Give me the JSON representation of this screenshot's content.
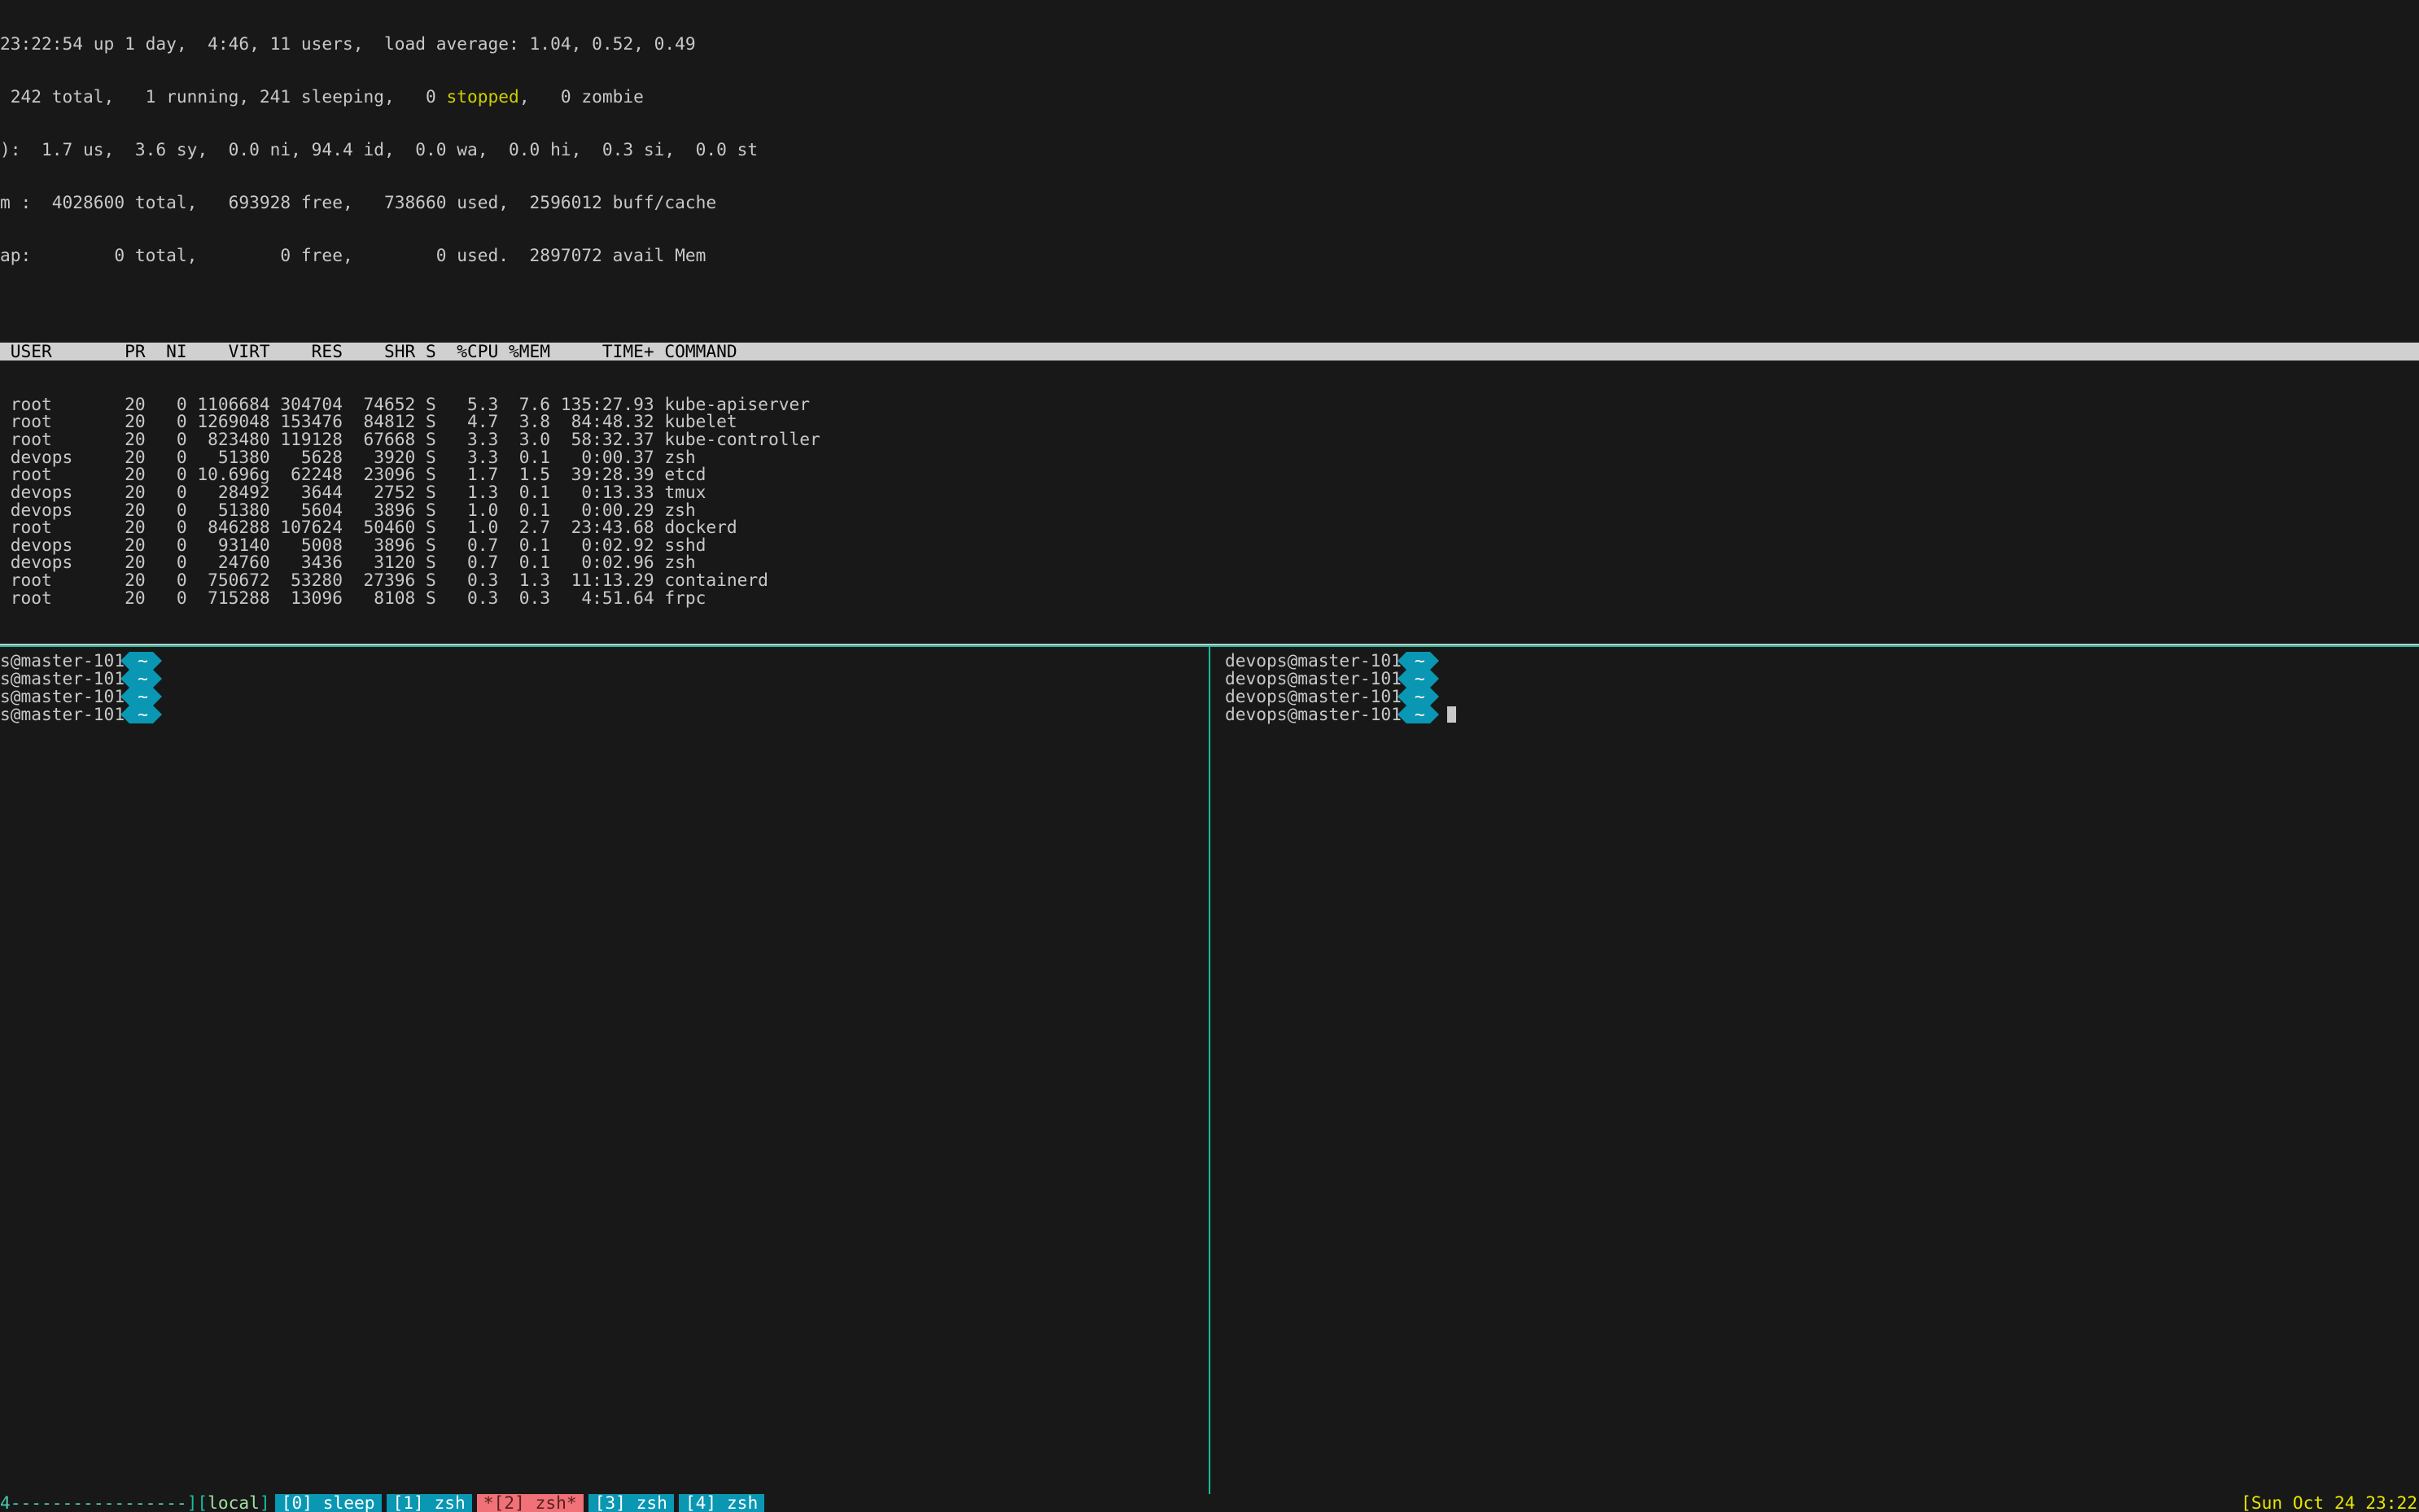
{
  "colors": {
    "bg": "#181818",
    "fg": "#c8c8c8",
    "header_bg": "#d0d0d0",
    "header_fg": "#000000",
    "accent_green": "#1abc9c",
    "accent_cyan": "#0997b3",
    "accent_red": "#f07178",
    "yellow": "#cdcd00",
    "clock": "#e6e600"
  },
  "top": {
    "line1": "23:22:54 up 1 day,  4:46, 11 users,  load average: 1.04, 0.52, 0.49",
    "line2a": " 242 total,   1 running, 241 sleeping,   0 ",
    "line2_stopped": "stopped",
    "line2b": ",   0 zombie",
    "line3": "):  1.7 us,  3.6 sy,  0.0 ni, 94.4 id,  0.0 wa,  0.0 hi,  0.3 si,  0.0 st",
    "line4": "m :  4028600 total,   693928 free,   738660 used,  2596012 buff/cache",
    "line5": "ap:        0 total,        0 free,        0 used.  2897072 avail Mem",
    "col_header": " USER       PR  NI    VIRT    RES    SHR S  %CPU %MEM     TIME+ COMMAND                                                                                                    ",
    "rows": [
      " root       20   0 1106684 304704  74652 S   5.3  7.6 135:27.93 kube-apiserver",
      " root       20   0 1269048 153476  84812 S   4.7  3.8  84:48.32 kubelet",
      " root       20   0  823480 119128  67668 S   3.3  3.0  58:32.37 kube-controller",
      " devops     20   0   51380   5628   3920 S   3.3  0.1   0:00.37 zsh",
      " root       20   0 10.696g  62248  23096 S   1.7  1.5  39:28.39 etcd",
      " devops     20   0   28492   3644   2752 S   1.3  0.1   0:13.33 tmux",
      " devops     20   0   51380   5604   3896 S   1.0  0.1   0:00.29 zsh",
      " root       20   0  846288 107624  50460 S   1.0  2.7  23:43.68 dockerd",
      " devops     20   0   93140   5008   3896 S   0.7  0.1   0:02.92 sshd",
      " devops     20   0   24760   3436   3120 S   0.7  0.1   0:02.96 zsh",
      " root       20   0  750672  53280  27396 S   0.3  1.3  11:13.29 containerd",
      " root       20   0  715288  13096   8108 S   0.3  0.3   4:51.64 frpc"
    ]
  },
  "panes": {
    "left": [
      "s@master-101",
      "s@master-101",
      "s@master-101",
      "s@master-101"
    ],
    "right": [
      "devops@master-101",
      "devops@master-101",
      "devops@master-101",
      "devops@master-101"
    ],
    "tilde": "~"
  },
  "status": {
    "leading": "4",
    "dashes": "-----------------",
    "local": "local",
    "windows": [
      {
        "label": "[0] sleep",
        "style": "blue"
      },
      {
        "label": "[1] zsh",
        "style": "blue"
      },
      {
        "label": "*[2] zsh*",
        "style": "red"
      },
      {
        "label": "[3] zsh",
        "style": "blue"
      },
      {
        "label": "[4] zsh",
        "style": "blue"
      }
    ],
    "clock": "[Sun Oct 24 23:22"
  }
}
